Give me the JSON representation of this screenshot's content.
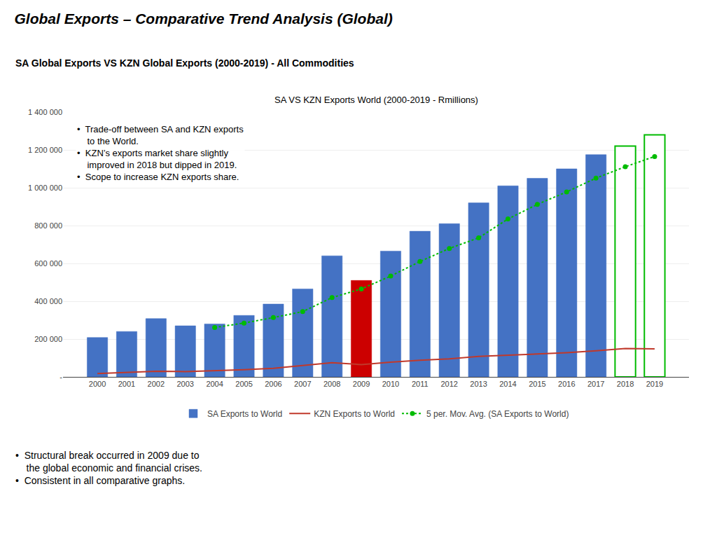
{
  "chart_data": {
    "type": "bar",
    "title": "Global Exports – Comparative Trend Analysis (Global)",
    "subtitle": "SA Global Exports VS KZN Global Exports (2000-2019) - All Commodities",
    "annotations": [
      "SA VS KZN Exports World (2000-2019 - Rmillions)",
      "•  Trade-off between SA and KZN exports\n    to the World.\n•  KZN’s exports market share slightly\n    improved in 2018 but dipped in 2019.\n•  Scope to increase KZN exports share.",
      "•  Structural break occurred in 2009 due to\n    the global economic and financial crises.\n•  Consistent in all comparative graphs."
    ],
    "categories": [
      "2000",
      "2001",
      "2002",
      "2003",
      "2004",
      "2005",
      "2006",
      "2007",
      "2008",
      "2009",
      "2010",
      "2011",
      "2012",
      "2013",
      "2014",
      "2015",
      "2016",
      "2017",
      "2018",
      "2019"
    ],
    "series": [
      {
        "name": "SA Exports to World",
        "type": "bar",
        "colors": [
          "#4472C4",
          "#4472C4",
          "#4472C4",
          "#4472C4",
          "#4472C4",
          "#4472C4",
          "#4472C4",
          "#4472C4",
          "#4472C4",
          "#CC0000",
          "#4472C4",
          "#4472C4",
          "#4472C4",
          "#4472C4",
          "#4472C4",
          "#4472C4",
          "#4472C4",
          "#4472C4",
          "#FFFFFF",
          "#FFFFFF"
        ],
        "values": [
          208000,
          240000,
          308000,
          270000,
          280000,
          325000,
          385000,
          465000,
          640000,
          510000,
          665000,
          770000,
          810000,
          920000,
          1010000,
          1050000,
          1100000,
          1175000,
          1220000,
          1280000
        ]
      },
      {
        "name": "KZN Exports to World",
        "type": "line",
        "color": "#C0392B",
        "line_style": "solid",
        "values": [
          18000,
          25000,
          30000,
          28000,
          32000,
          38000,
          45000,
          60000,
          75000,
          65000,
          78000,
          88000,
          95000,
          108000,
          115000,
          120000,
          128000,
          138000,
          150000,
          148000
        ]
      },
      {
        "name": "5 per. Mov. Avg. (SA Exports to World)",
        "type": "line",
        "color": "#00BB00",
        "line_style": "dotted",
        "marker": "circle",
        "values": [
          null,
          null,
          null,
          null,
          261200,
          284600,
          313600,
          345000,
          419000,
          465000,
          533000,
          610000,
          679000,
          735000,
          835000,
          912000,
          978000,
          1051000,
          1111000,
          1165000
        ]
      }
    ],
    "ylim": [
      0,
      1400000
    ],
    "yticks": [
      {
        "value": 0,
        "label": "-"
      },
      {
        "value": 200000,
        "label": "200 000"
      },
      {
        "value": 400000,
        "label": "400 000"
      },
      {
        "value": 600000,
        "label": "600 000"
      },
      {
        "value": 800000,
        "label": "800 000"
      },
      {
        "value": 1000000,
        "label": "1 000 000"
      },
      {
        "value": 1200000,
        "label": "1 200 000"
      },
      {
        "value": 1400000,
        "label": "1 400 000"
      }
    ],
    "grid": true,
    "legend": "bottom"
  }
}
